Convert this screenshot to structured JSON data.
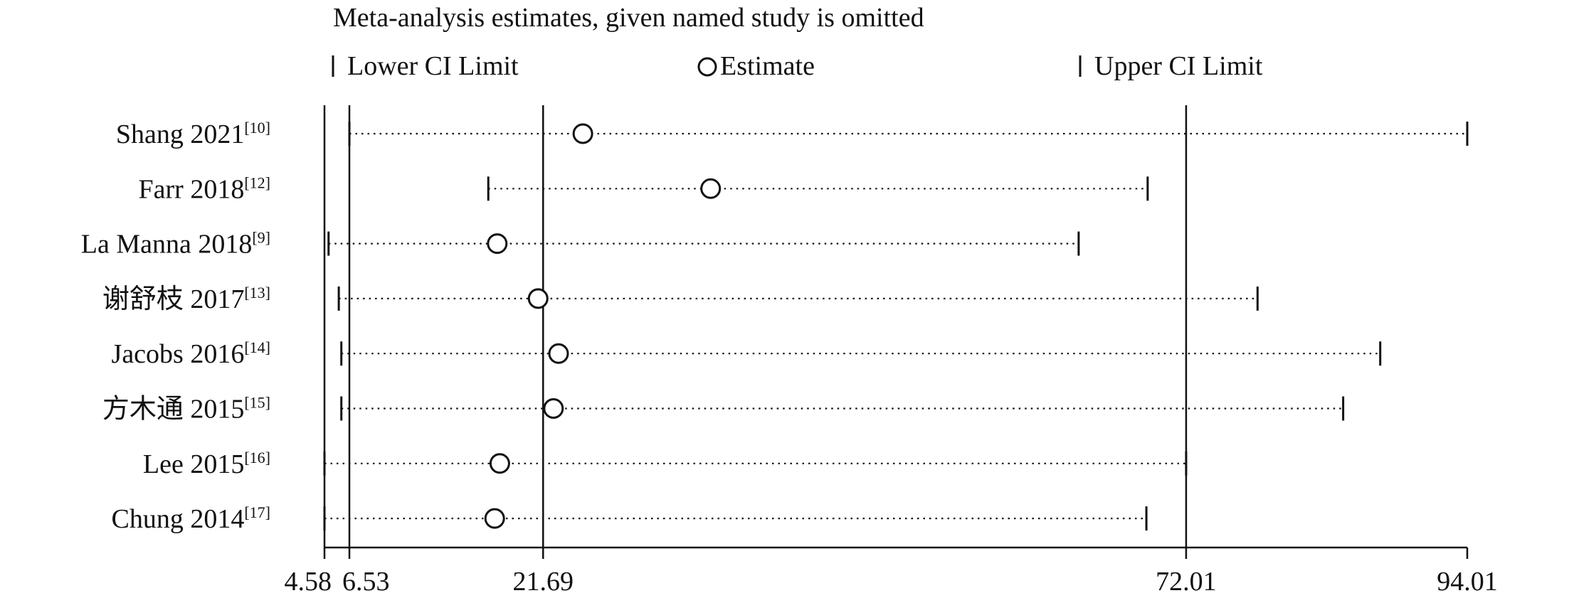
{
  "chart_data": {
    "type": "forest",
    "title": "Meta-analysis estimates, given named study is omitted",
    "legend": {
      "placement": "top",
      "lower": "Lower CI Limit",
      "estimate": "Estimate",
      "upper": "Upper CI Limit"
    },
    "x_ticks": [
      "4.58",
      "6.53",
      "21.69",
      "72.01",
      "94.01"
    ],
    "x_tick_values": [
      4.58,
      6.53,
      21.69,
      72.01,
      94.01
    ],
    "reference_lines": [
      4.58,
      6.53,
      21.69,
      72.01
    ],
    "xlim": [
      4.58,
      94.01
    ],
    "studies": [
      {
        "label": "Shang 2021",
        "ref": "[10]",
        "lower": 6.53,
        "estimate": 24.8,
        "upper": 94.01
      },
      {
        "label": "Farr 2018",
        "ref": "[12]",
        "lower": 17.4,
        "estimate": 34.8,
        "upper": 69.0
      },
      {
        "label": "La Manna 2018",
        "ref": "[9]",
        "lower": 4.9,
        "estimate": 18.1,
        "upper": 63.6
      },
      {
        "label": "谢舒枝 2017",
        "ref": "[13]",
        "lower": 5.7,
        "estimate": 21.3,
        "upper": 77.6
      },
      {
        "label": "Jacobs 2016",
        "ref": "[14]",
        "lower": 5.9,
        "estimate": 22.9,
        "upper": 87.2
      },
      {
        "label": "方木通 2015",
        "ref": "[15]",
        "lower": 5.9,
        "estimate": 22.5,
        "upper": 84.3
      },
      {
        "label": "Lee 2015",
        "ref": "[16]",
        "lower": 4.58,
        "estimate": 18.3,
        "upper": 72.01
      },
      {
        "label": "Chung 2014",
        "ref": "[17]",
        "lower": 4.58,
        "estimate": 17.9,
        "upper": 68.9
      }
    ]
  }
}
